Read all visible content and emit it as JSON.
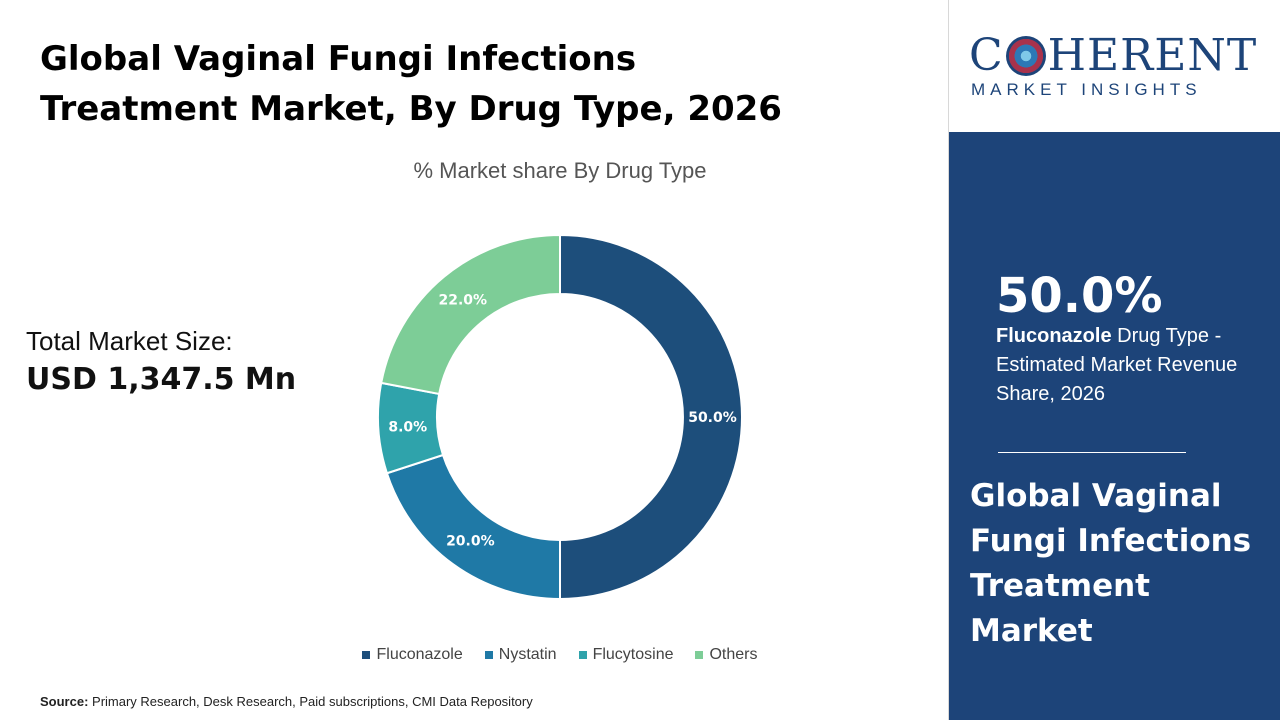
{
  "title": "Global Vaginal Fungi Infections Treatment Market, By Drug Type, 2026",
  "total_market": {
    "label": "Total Market Size:",
    "value": "USD 1,347.5 Mn"
  },
  "source": {
    "label": "Source:",
    "text": "Primary Research, Desk Research, Paid subscriptions, CMI Data Repository"
  },
  "logo": {
    "pre": "C",
    "post": "HERENT",
    "sub": "MARKET INSIGHTS"
  },
  "highlight": {
    "value": "50.0%",
    "bold_text": "Fluconazole",
    "text": "Drug Type - Estimated Market Revenue Share, 2026"
  },
  "side_title": "Global Vaginal Fungi Infections Treatment Market",
  "colors": {
    "panel": "#1d4479",
    "Fluconazole": "#1d4e7b",
    "Nystatin": "#1f79a6",
    "Flucytosine": "#2fa3ab",
    "Others": "#7dcd97"
  },
  "chart_data": {
    "type": "pie",
    "subtitle": "% Market share By Drug Type",
    "categories": [
      "Fluconazole",
      "Nystatin",
      "Flucytosine",
      "Others"
    ],
    "values": [
      50.0,
      20.0,
      8.0,
      22.0
    ],
    "labels": [
      "50.0%",
      "20.0%",
      "8.0%",
      "22.0%"
    ],
    "legend": "bottom"
  }
}
